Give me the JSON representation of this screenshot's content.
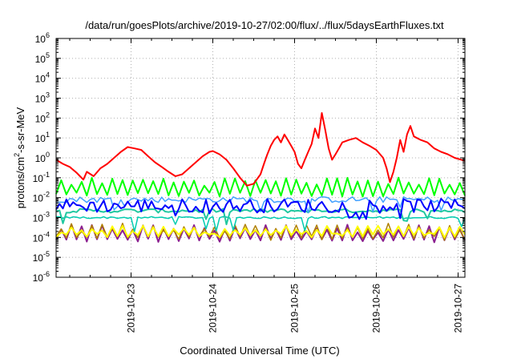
{
  "chart_data": {
    "type": "line",
    "title": "/data/run/goesPlots/archive/2019-10-27/02:00/flux/../flux/5daysEarthFluxes.txt",
    "xlabel": "Coordinated Universal Time (UTC)",
    "ylabel": "protons/cm²-s-sr-MeV",
    "ylabel_parts": {
      "pre": "protons/cm",
      "sup": "2",
      "post": "-s-sr-MeV"
    },
    "yscale": "log",
    "ylim": [
      -6,
      6
    ],
    "yticks": [
      {
        "exp": -6,
        "base": "10",
        "sup": "-6"
      },
      {
        "exp": -5,
        "base": "10",
        "sup": "-5"
      },
      {
        "exp": -4,
        "base": "10",
        "sup": "-4"
      },
      {
        "exp": -3,
        "base": "10",
        "sup": "-3"
      },
      {
        "exp": -2,
        "base": "10",
        "sup": "-2"
      },
      {
        "exp": -1,
        "base": "10",
        "sup": "-1"
      },
      {
        "exp": 0,
        "base": "10",
        "sup": "0"
      },
      {
        "exp": 1,
        "base": "10",
        "sup": "1"
      },
      {
        "exp": 2,
        "base": "10",
        "sup": "2"
      },
      {
        "exp": 3,
        "base": "10",
        "sup": "3"
      },
      {
        "exp": 4,
        "base": "10",
        "sup": "4"
      },
      {
        "exp": 5,
        "base": "10",
        "sup": "5"
      },
      {
        "exp": 6,
        "base": "10",
        "sup": "6"
      }
    ],
    "xlim": [
      "2019-10-22T02:00",
      "2019-10-27T02:00"
    ],
    "xticks": [
      {
        "at": "2019-10-23T00:00",
        "label": "2019-10-23"
      },
      {
        "at": "2019-10-24T00:00",
        "label": "2019-10-24"
      },
      {
        "at": "2019-10-25T00:00",
        "label": "2019-10-25"
      },
      {
        "at": "2019-10-26T00:00",
        "label": "2019-10-26"
      },
      {
        "at": "2019-10-27T00:00",
        "label": "2019-10-27"
      }
    ],
    "grid": true,
    "series": [
      {
        "color": "#ff0000",
        "width": 2,
        "noise": 0.0,
        "points": [
          [
            "2019-10-22T02:00",
            0.8
          ],
          [
            "2019-10-22T04:00",
            0.5
          ],
          [
            "2019-10-22T06:00",
            0.35
          ],
          [
            "2019-10-22T08:00",
            0.18
          ],
          [
            "2019-10-22T10:00",
            0.08
          ],
          [
            "2019-10-22T11:00",
            0.2
          ],
          [
            "2019-10-22T13:00",
            0.12
          ],
          [
            "2019-10-22T15:00",
            0.3
          ],
          [
            "2019-10-22T17:00",
            0.5
          ],
          [
            "2019-10-22T19:00",
            1.0
          ],
          [
            "2019-10-22T21:00",
            2.0
          ],
          [
            "2019-10-22T23:00",
            3.5
          ],
          [
            "2019-10-23T01:00",
            3.0
          ],
          [
            "2019-10-23T03:00",
            2.5
          ],
          [
            "2019-10-23T05:00",
            1.2
          ],
          [
            "2019-10-23T07:00",
            0.6
          ],
          [
            "2019-10-23T09:00",
            0.35
          ],
          [
            "2019-10-23T11:00",
            0.2
          ],
          [
            "2019-10-23T13:00",
            0.12
          ],
          [
            "2019-10-23T15:00",
            0.15
          ],
          [
            "2019-10-23T17:00",
            0.3
          ],
          [
            "2019-10-23T19:00",
            0.6
          ],
          [
            "2019-10-23T21:00",
            1.2
          ],
          [
            "2019-10-23T23:00",
            2.0
          ],
          [
            "2019-10-24T00:00",
            2.2
          ],
          [
            "2019-10-24T02:00",
            1.5
          ],
          [
            "2019-10-24T04:00",
            0.8
          ],
          [
            "2019-10-24T06:00",
            0.3
          ],
          [
            "2019-10-24T08:00",
            0.1
          ],
          [
            "2019-10-24T10:00",
            0.04
          ],
          [
            "2019-10-24T12:00",
            0.05
          ],
          [
            "2019-10-24T14:00",
            0.15
          ],
          [
            "2019-10-24T15:00",
            0.5
          ],
          [
            "2019-10-24T16:00",
            1.5
          ],
          [
            "2019-10-24T17:00",
            4.0
          ],
          [
            "2019-10-24T18:00",
            8.0
          ],
          [
            "2019-10-24T19:00",
            12
          ],
          [
            "2019-10-24T20:00",
            6
          ],
          [
            "2019-10-24T21:00",
            15
          ],
          [
            "2019-10-24T22:00",
            8
          ],
          [
            "2019-10-24T23:00",
            4
          ],
          [
            "2019-10-25T00:00",
            2
          ],
          [
            "2019-10-25T01:00",
            0.5
          ],
          [
            "2019-10-25T02:00",
            0.3
          ],
          [
            "2019-10-25T03:00",
            0.8
          ],
          [
            "2019-10-25T04:00",
            2.0
          ],
          [
            "2019-10-25T05:00",
            5.0
          ],
          [
            "2019-10-25T06:00",
            30
          ],
          [
            "2019-10-25T07:00",
            10
          ],
          [
            "2019-10-25T08:00",
            180
          ],
          [
            "2019-10-25T09:00",
            25
          ],
          [
            "2019-10-25T10:00",
            3
          ],
          [
            "2019-10-25T11:00",
            0.8
          ],
          [
            "2019-10-25T12:00",
            1.5
          ],
          [
            "2019-10-25T13:00",
            3.0
          ],
          [
            "2019-10-25T14:00",
            6
          ],
          [
            "2019-10-25T16:00",
            8
          ],
          [
            "2019-10-25T18:00",
            10
          ],
          [
            "2019-10-25T20:00",
            6
          ],
          [
            "2019-10-25T22:00",
            4
          ],
          [
            "2019-10-26T00:00",
            2.5
          ],
          [
            "2019-10-26T02:00",
            1.0
          ],
          [
            "2019-10-26T03:00",
            0.3
          ],
          [
            "2019-10-26T04:00",
            0.06
          ],
          [
            "2019-10-26T05:00",
            0.2
          ],
          [
            "2019-10-26T06:00",
            1.0
          ],
          [
            "2019-10-26T07:00",
            8
          ],
          [
            "2019-10-26T08:00",
            2
          ],
          [
            "2019-10-26T09:00",
            15
          ],
          [
            "2019-10-26T10:00",
            40
          ],
          [
            "2019-10-26T11:00",
            12
          ],
          [
            "2019-10-26T13:00",
            8
          ],
          [
            "2019-10-26T15:00",
            6
          ],
          [
            "2019-10-26T17:00",
            3
          ],
          [
            "2019-10-26T19:00",
            2
          ],
          [
            "2019-10-26T21:00",
            1.5
          ],
          [
            "2019-10-26T23:00",
            1.0
          ],
          [
            "2019-10-27T01:00",
            0.8
          ],
          [
            "2019-10-27T02:00",
            0.7
          ]
        ]
      },
      {
        "color": "#00ff00",
        "width": 2,
        "noise": 0.0,
        "spiky": true,
        "base": 0.014,
        "peak": 0.08,
        "period_h": 3
      },
      {
        "color": "#0000ff",
        "width": 2,
        "noise": 0.35,
        "base": 0.004,
        "period_h": 2
      },
      {
        "color": "#40a0ff",
        "width": 1.5,
        "noise": 0.15,
        "base": 0.008,
        "period_h": 2
      },
      {
        "color": "#20c8a0",
        "width": 2,
        "noise": 0.1,
        "base": 0.0022,
        "period_h": 2
      },
      {
        "color": "#00ccb0",
        "width": 1.5,
        "noise": 0.05,
        "base": 0.001,
        "period_h": 2
      },
      {
        "color": "#ffff00",
        "width": 2,
        "noise": 0.0,
        "spiky": true,
        "base": 0.00012,
        "peak": 0.0003,
        "period_h": 3
      },
      {
        "color": "#b08000",
        "width": 1.5,
        "noise": 0.0,
        "spiky": true,
        "base": 9e-05,
        "peak": 0.0004,
        "period_h": 3
      },
      {
        "color": "#8b2090",
        "width": 2,
        "noise": 0.0,
        "spiky": true,
        "base": 7e-05,
        "peak": 0.00035,
        "period_h": 3
      }
    ]
  }
}
